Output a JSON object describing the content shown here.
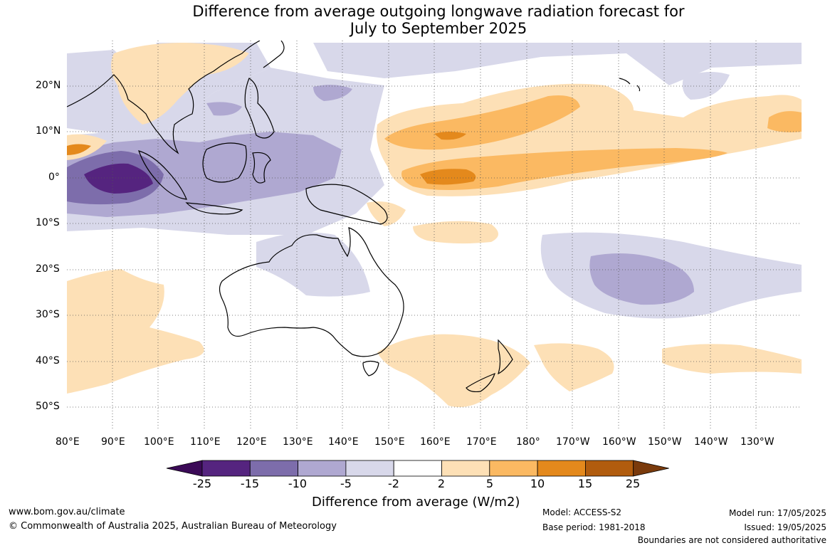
{
  "title": {
    "line1": "Difference from average outgoing longwave radiation forecast for",
    "line2": "July to September 2025"
  },
  "map": {
    "longitude_labels": [
      "80°E",
      "90°E",
      "100°E",
      "110°E",
      "120°E",
      "130°E",
      "140°E",
      "150°E",
      "160°E",
      "170°E",
      "180°",
      "170°W",
      "160°W",
      "150°W",
      "140°W",
      "130°W"
    ],
    "latitude_labels": [
      "20°N",
      "10°N",
      "0°",
      "10°S",
      "20°S",
      "30°S",
      "40°S",
      "50°S"
    ],
    "extent": {
      "lon_min": 80,
      "lon_max": 240,
      "lat_min": -55,
      "lat_max": 30
    }
  },
  "colorbar": {
    "title": "Difference from average (W/m2)",
    "ticks": [
      "-25",
      "-15",
      "-10",
      "-5",
      "-2",
      "2",
      "5",
      "10",
      "15",
      "25"
    ],
    "colors": [
      "#3b0a57",
      "#55247f",
      "#7d6dab",
      "#afa8d1",
      "#d8d8ea",
      "#ffffff",
      "#fde0b6",
      "#fbb962",
      "#e4891c",
      "#b15c0e",
      "#7a3a0c"
    ]
  },
  "footer": {
    "website": "www.bom.gov.au/climate",
    "copyright": "© Commonwealth of Australia 2025, Australian Bureau of Meteorology",
    "model": "Model: ACCESS-S2",
    "base_period": "Base period: 1981-2018",
    "model_run": "Model run: 17/05/2025",
    "issued": "Issued: 19/05/2025",
    "boundaries_note": "Boundaries are not considered authoritative"
  }
}
